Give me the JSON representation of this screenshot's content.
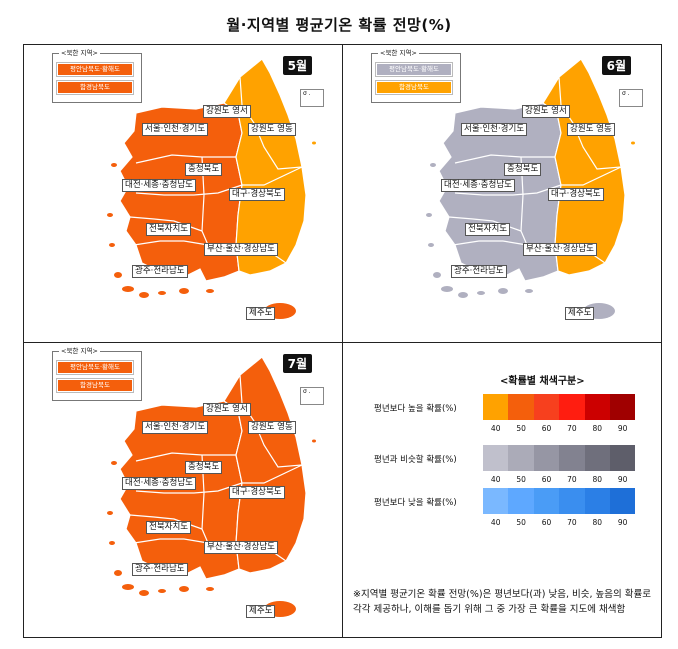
{
  "title": "월·지역별 평균기온 확률 전망(%)",
  "north_korea_legend": {
    "title": "<북한 지역>",
    "item1": "평안남북도·황해도",
    "item2": "함경남북도"
  },
  "inset_symbol": "σ .",
  "panels": [
    {
      "month": "5월",
      "nk_colors": [
        "#f45f0c",
        "#f45f0c"
      ],
      "colors": {
        "w": "#f45f0c",
        "e": "#ffa200",
        "gw_east": "#ffa200",
        "jeju": "#f45f0c"
      }
    },
    {
      "month": "6월",
      "nk_colors": [
        "#b0b0c0",
        "#ffa200"
      ],
      "colors": {
        "w": "#b0b0c0",
        "e": "#ffa200",
        "gw_east": "#ffa200",
        "jeju": "#b0b0c0"
      }
    },
    {
      "month": "7월",
      "nk_colors": [
        "#f45f0c",
        "#f45f0c"
      ],
      "colors": {
        "w": "#f45f0c",
        "e": "#f45f0c",
        "gw_east": "#f45f0c",
        "jeju": "#f45f0c"
      }
    }
  ],
  "regions": {
    "gw_west": "강원도 영서",
    "gw_east": "강원도 영동",
    "seoul": "서울·인천·경기도",
    "cb": "충청북도",
    "cn": "대전·세종·충청남도",
    "dg": "대구·경상북도",
    "jb": "전북자치도",
    "bs": "부산·울산·경상남도",
    "gj": "광주·전라남도",
    "jeju": "제주도"
  },
  "legend": {
    "title": "<확률별 채색구분>",
    "rows": [
      {
        "label": "평년보다 높을 확률(%)",
        "colors": [
          "#ffa200",
          "#f45f0c",
          "#f7401e",
          "#ff1d10",
          "#cc0000",
          "#a00000"
        ]
      },
      {
        "label": "평년과 비슷할 확률(%)",
        "colors": [
          "#c0c0cc",
          "#ababb8",
          "#9696a4",
          "#828290",
          "#6f6f7c",
          "#5e5e6a"
        ]
      },
      {
        "label": "평년보다 낮을 확률(%)",
        "colors": [
          "#7ab8ff",
          "#5ea8ff",
          "#4a9cf6",
          "#3a8eef",
          "#2b7fe6",
          "#1e6fd8"
        ]
      }
    ],
    "ticks": [
      "40",
      "50",
      "60",
      "70",
      "80",
      "90"
    ]
  },
  "footnote": "※지역별 평균기온 확률 전망(%)은 평년보다(과) 낮음, 비슷, 높음의 확률로 각각 제공하나, 이해를 돕기 위해 그 중 가장 큰 확률을 지도에 채색함"
}
